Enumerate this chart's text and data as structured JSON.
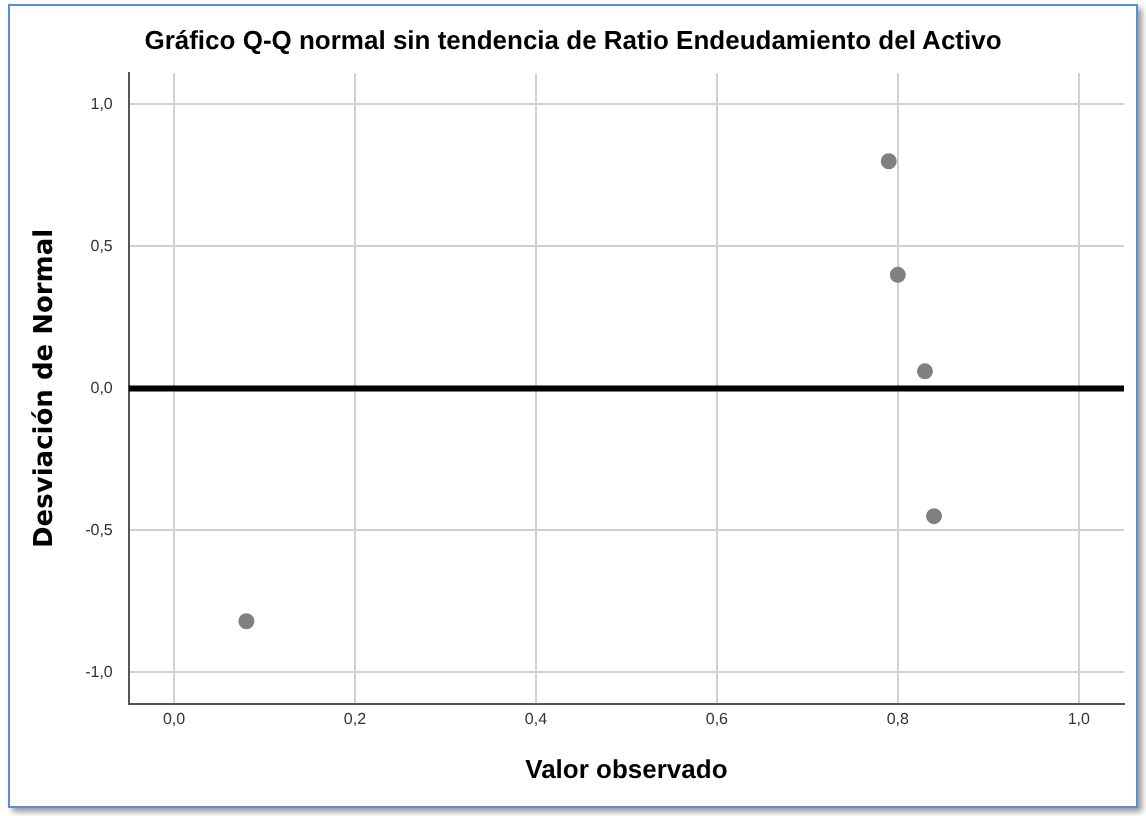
{
  "chart_data": {
    "type": "scatter",
    "title": "Gráfico Q-Q normal sin tendencia de Ratio Endeudamiento del Activo",
    "xlabel": "Valor observado",
    "ylabel": "Desviación de Normal",
    "x": [
      0.08,
      0.79,
      0.8,
      0.83,
      0.84
    ],
    "series": [
      {
        "color": "#808080",
        "values": [
          -0.82,
          0.8,
          0.4,
          0.06,
          -0.45
        ]
      }
    ],
    "xlim": [
      -0.05,
      1.05
    ],
    "ylim": [
      -1.11,
      1.11
    ],
    "xticks": [
      {
        "value": 0,
        "label": "0,0"
      },
      {
        "value": 0.2,
        "label": "0,2"
      },
      {
        "value": 0.4,
        "label": "0,4"
      },
      {
        "value": 0.6,
        "label": "0,6"
      },
      {
        "value": 0.8,
        "label": "0,8"
      },
      {
        "value": 1,
        "label": "1,0"
      }
    ],
    "yticks": [
      {
        "value": -1,
        "label": "-1,0"
      },
      {
        "value": -0.5,
        "label": "-0,5"
      },
      {
        "value": 0,
        "label": "0,0"
      },
      {
        "value": 0.5,
        "label": "0,5"
      },
      {
        "value": 1,
        "label": "1,0"
      }
    ],
    "ref_lines": [
      {
        "axis": "y",
        "value": 0,
        "color": "#000000"
      }
    ],
    "grid": true,
    "marker": "circle",
    "legend": false
  }
}
